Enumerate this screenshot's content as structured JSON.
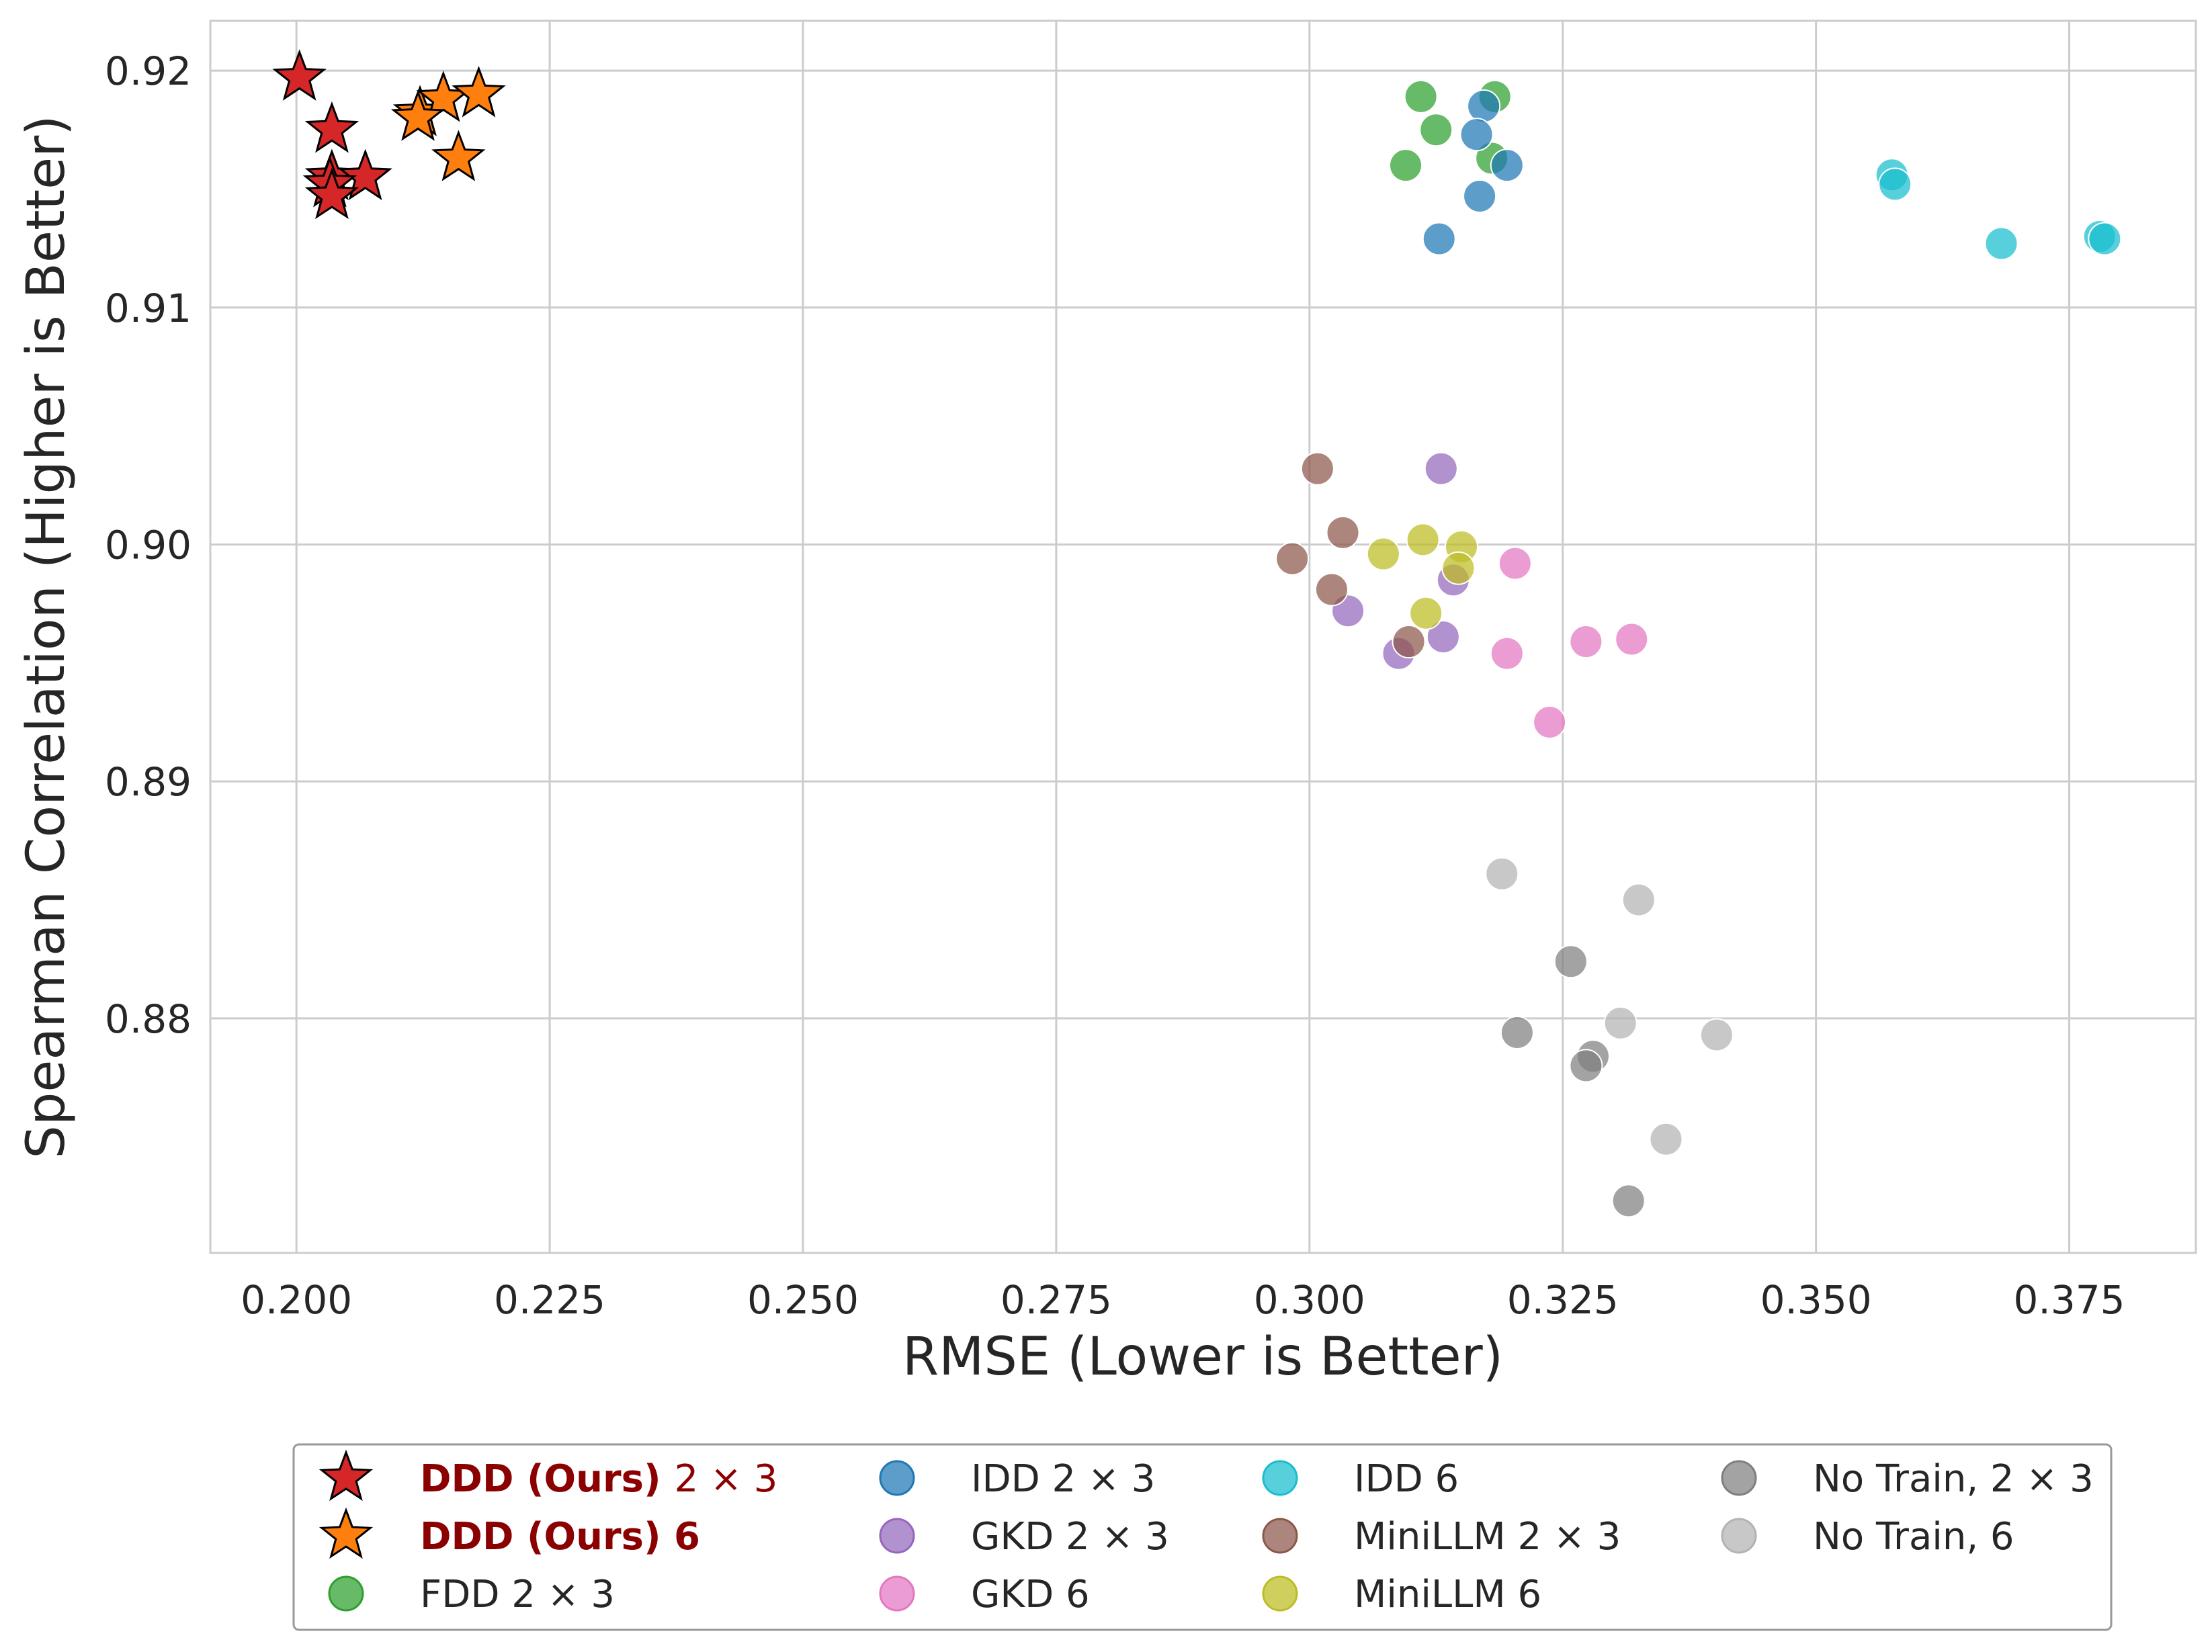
{
  "chart_data": {
    "type": "scatter",
    "xlabel": "RMSE (Lower is Better)",
    "ylabel": "Spearman Correlation (Higher is Better)",
    "xlim": [
      0.1915,
      0.3875
    ],
    "ylim": [
      0.8701,
      0.9221
    ],
    "xticks": [
      "0.200",
      "0.225",
      "0.250",
      "0.275",
      "0.300",
      "0.325",
      "0.350",
      "0.375"
    ],
    "yticks": [
      "0.88",
      "0.89",
      "0.90",
      "0.91",
      "0.92"
    ],
    "grid": true,
    "legend_position": "below",
    "legend_columns": 4,
    "series": [
      {
        "name_bold": "DDD (Ours)",
        "name_suffix": "2 × 3",
        "marker": "star",
        "color": "#d62728",
        "legend_text_color": "#8b0000",
        "points": [
          [
            0.2003,
            0.9197
          ],
          [
            0.2035,
            0.9175
          ],
          [
            0.2035,
            0.9155
          ],
          [
            0.2068,
            0.9155
          ],
          [
            0.2033,
            0.9152
          ],
          [
            0.2035,
            0.9147
          ]
        ]
      },
      {
        "name_bold": "DDD (Ours) 6",
        "name_suffix": "",
        "marker": "star",
        "color": "#ff7f0e",
        "legend_text_color": "#8b0000",
        "points": [
          [
            0.2122,
            0.9182
          ],
          [
            0.2145,
            0.9188
          ],
          [
            0.218,
            0.919
          ],
          [
            0.216,
            0.9163
          ],
          [
            0.212,
            0.918
          ]
        ]
      },
      {
        "name": "FDD 2 × 3",
        "marker": "circle",
        "color": "#2ca02c",
        "points": [
          [
            0.311,
            0.9189
          ],
          [
            0.3183,
            0.9189
          ],
          [
            0.3125,
            0.9175
          ],
          [
            0.318,
            0.9163
          ],
          [
            0.3095,
            0.916
          ]
        ]
      },
      {
        "name": "IDD 2 × 3",
        "marker": "circle",
        "color": "#1f77b4",
        "points": [
          [
            0.3172,
            0.9185
          ],
          [
            0.3165,
            0.9173
          ],
          [
            0.3195,
            0.916
          ],
          [
            0.3168,
            0.9147
          ],
          [
            0.3128,
            0.9129
          ]
        ]
      },
      {
        "name": "GKD 2 × 3",
        "marker": "circle",
        "color": "#9467bd",
        "points": [
          [
            0.313,
            0.9032
          ],
          [
            0.3142,
            0.8985
          ],
          [
            0.3038,
            0.8972
          ],
          [
            0.3132,
            0.8961
          ],
          [
            0.3088,
            0.8954
          ]
        ]
      },
      {
        "name": "GKD 6",
        "marker": "circle",
        "color": "#e377c2",
        "points": [
          [
            0.3203,
            0.8992
          ],
          [
            0.3318,
            0.896
          ],
          [
            0.3273,
            0.8959
          ],
          [
            0.3195,
            0.8954
          ],
          [
            0.3237,
            0.8925
          ]
        ]
      },
      {
        "name": "IDD 6",
        "marker": "circle",
        "color": "#17becf",
        "points": [
          [
            0.3575,
            0.9156
          ],
          [
            0.3578,
            0.9152
          ],
          [
            0.378,
            0.913
          ],
          [
            0.3785,
            0.9129
          ],
          [
            0.3683,
            0.9127
          ]
        ]
      },
      {
        "name": "MiniLLM 2 × 3",
        "marker": "circle",
        "color": "#8c564b",
        "points": [
          [
            0.3008,
            0.9032
          ],
          [
            0.3033,
            0.9005
          ],
          [
            0.2983,
            0.8994
          ],
          [
            0.3022,
            0.8981
          ],
          [
            0.3098,
            0.8959
          ]
        ]
      },
      {
        "name": "MiniLLM 6",
        "marker": "circle",
        "color": "#bcbd22",
        "points": [
          [
            0.3112,
            0.9002
          ],
          [
            0.315,
            0.8999
          ],
          [
            0.3073,
            0.8996
          ],
          [
            0.3147,
            0.899
          ],
          [
            0.3115,
            0.8971
          ]
        ]
      },
      {
        "name": "No Train, 2 × 3",
        "marker": "circle",
        "color": "#7f7f7f",
        "points": [
          [
            0.3258,
            0.8824
          ],
          [
            0.3205,
            0.8794
          ],
          [
            0.328,
            0.8784
          ],
          [
            0.3273,
            0.878
          ],
          [
            0.3315,
            0.8723
          ]
        ]
      },
      {
        "name": "No Train, 6",
        "marker": "circle",
        "color": "#b3b3b3",
        "points": [
          [
            0.319,
            0.8861
          ],
          [
            0.3325,
            0.885
          ],
          [
            0.3307,
            0.8798
          ],
          [
            0.3402,
            0.8793
          ],
          [
            0.3352,
            0.8749
          ]
        ]
      }
    ]
  }
}
